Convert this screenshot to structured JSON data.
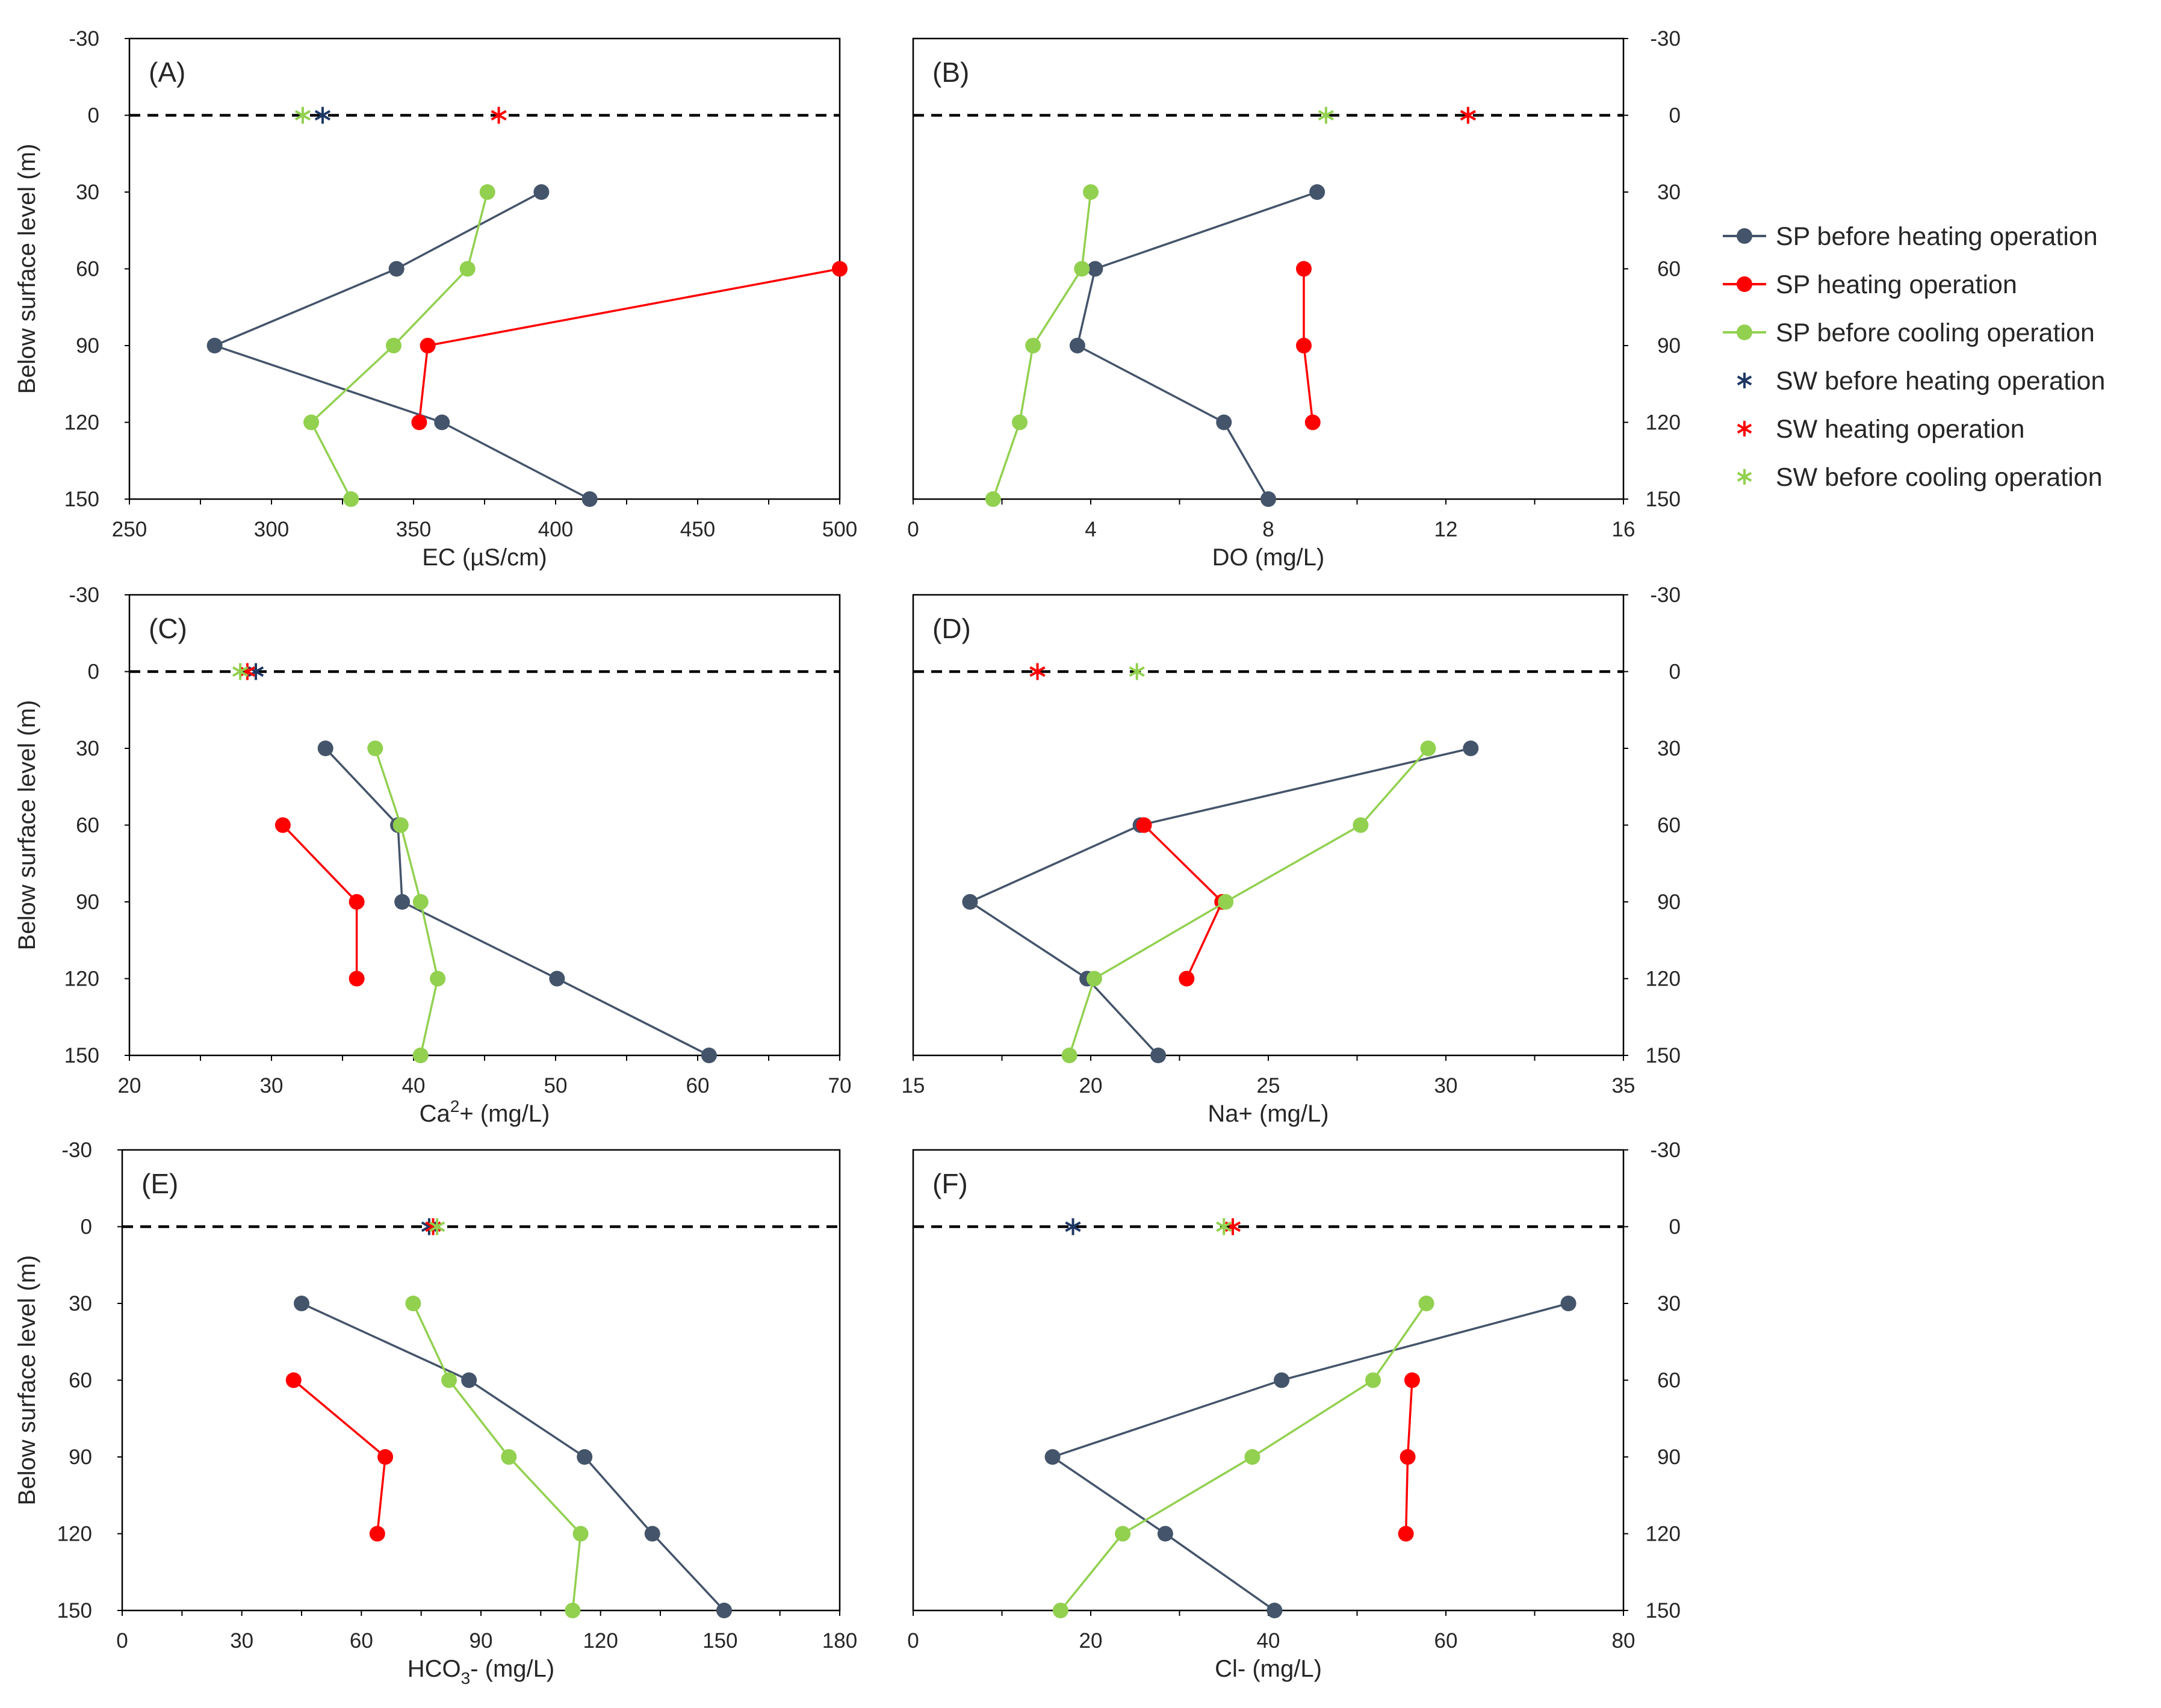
{
  "figure": {
    "ylabel": "Below surface level (m)",
    "yticks": [
      -30,
      0,
      30,
      60,
      90,
      120,
      150
    ],
    "depths": [
      30,
      60,
      90,
      120,
      150
    ],
    "colors": {
      "before_heating": "#44546A",
      "sw_before_heating": "#1F3864",
      "heating": "#FF0000",
      "before_cooling": "#92D050",
      "dashed_line": "#000000",
      "frame": "#000000"
    }
  },
  "legend": {
    "items": [
      {
        "label": "SP before heating operation",
        "type": "line",
        "color": "#44546A"
      },
      {
        "label": "SP heating operation",
        "type": "line",
        "color": "#FF0000"
      },
      {
        "label": "SP before cooling operation",
        "type": "line",
        "color": "#92D050"
      },
      {
        "label": "SW before heating operation",
        "type": "star",
        "color": "#1F3864"
      },
      {
        "label": "SW heating operation",
        "type": "star",
        "color": "#FF0000"
      },
      {
        "label": "SW before cooling operation",
        "type": "star",
        "color": "#92D050"
      }
    ]
  },
  "chart_data": [
    {
      "panel": "(A)",
      "type": "line",
      "xlabel": "EC (µS/cm)",
      "xlim": [
        250,
        500
      ],
      "xticks": [
        250,
        300,
        350,
        400,
        450,
        500
      ],
      "ylim": [
        -30,
        150
      ],
      "y_inverted": true,
      "series": [
        {
          "name": "SP before heating operation",
          "depths": [
            30,
            60,
            90,
            120,
            150
          ],
          "values": [
            395,
            344,
            280,
            360,
            412
          ]
        },
        {
          "name": "SP heating operation",
          "depths": [
            60,
            90,
            120
          ],
          "values": [
            500,
            355,
            352
          ]
        },
        {
          "name": "SP before cooling operation",
          "depths": [
            30,
            60,
            90,
            120,
            150
          ],
          "values": [
            376,
            369,
            343,
            314,
            328
          ]
        }
      ],
      "surface_water": [
        {
          "name": "SW before heating operation",
          "depth": 0,
          "value": 318
        },
        {
          "name": "SW heating operation",
          "depth": 0,
          "value": 380
        },
        {
          "name": "SW before cooling operation",
          "depth": 0,
          "value": 311
        }
      ]
    },
    {
      "panel": "(B)",
      "type": "line",
      "xlabel": "DO (mg/L)",
      "xlim": [
        0,
        16
      ],
      "xticks": [
        0,
        4,
        8,
        12,
        16
      ],
      "ylim": [
        -30,
        150
      ],
      "y_inverted": true,
      "series": [
        {
          "name": "SP before heating operation",
          "depths": [
            30,
            60,
            90,
            120,
            150
          ],
          "values": [
            9.1,
            4.1,
            3.7,
            7.0,
            8.0
          ]
        },
        {
          "name": "SP heating operation",
          "depths": [
            60,
            90,
            120
          ],
          "values": [
            8.8,
            8.8,
            9.0
          ]
        },
        {
          "name": "SP before cooling operation",
          "depths": [
            30,
            60,
            90,
            120,
            150
          ],
          "values": [
            4.0,
            3.8,
            2.7,
            2.4,
            1.8
          ]
        }
      ],
      "surface_water": [
        {
          "name": "SW before heating operation",
          "depth": 0,
          "value": 12.5
        },
        {
          "name": "SW heating operation",
          "depth": 0,
          "value": 12.5
        },
        {
          "name": "SW before cooling operation",
          "depth": 0,
          "value": 9.3
        }
      ]
    },
    {
      "panel": "(C)",
      "type": "line",
      "xlabel": "Ca",
      "xlabel_sup": "2",
      "xlabel_tail": "+ (mg/L)",
      "xlim": [
        20,
        70
      ],
      "xticks": [
        20,
        30,
        40,
        50,
        60,
        70
      ],
      "ylim": [
        -30,
        150
      ],
      "y_inverted": true,
      "series": [
        {
          "name": "SP before heating operation",
          "depths": [
            30,
            60,
            90,
            120,
            150
          ],
          "values": [
            33.8,
            38.9,
            39.2,
            50.1,
            60.8
          ]
        },
        {
          "name": "SP heating operation",
          "depths": [
            60,
            90,
            120
          ],
          "values": [
            30.8,
            36.0,
            36.0
          ]
        },
        {
          "name": "SP before cooling operation",
          "depths": [
            30,
            60,
            90,
            120,
            150
          ],
          "values": [
            37.3,
            39.1,
            40.5,
            41.7,
            40.5
          ]
        }
      ],
      "surface_water": [
        {
          "name": "SW before heating operation",
          "depth": 0,
          "value": 28.9
        },
        {
          "name": "SW heating operation",
          "depth": 0,
          "value": 28.3
        },
        {
          "name": "SW before cooling operation",
          "depth": 0,
          "value": 27.8
        }
      ]
    },
    {
      "panel": "(D)",
      "type": "line",
      "xlabel": "Na+ (mg/L)",
      "xlim": [
        15,
        35
      ],
      "xticks": [
        15,
        20,
        25,
        30,
        35
      ],
      "ylim": [
        -30,
        150
      ],
      "y_inverted": true,
      "series": [
        {
          "name": "SP before heating operation",
          "depths": [
            30,
            60,
            90,
            120,
            150
          ],
          "values": [
            30.7,
            21.4,
            16.6,
            19.9,
            21.9
          ]
        },
        {
          "name": "SP heating operation",
          "depths": [
            60,
            90,
            120
          ],
          "values": [
            21.5,
            23.7,
            22.7
          ]
        },
        {
          "name": "SP before cooling operation",
          "depths": [
            30,
            60,
            90,
            120,
            150
          ],
          "values": [
            29.5,
            27.6,
            23.8,
            20.1,
            19.4
          ]
        }
      ],
      "surface_water": [
        {
          "name": "SW before heating operation",
          "depth": 0,
          "value": 18.5
        },
        {
          "name": "SW heating operation",
          "depth": 0,
          "value": 18.5
        },
        {
          "name": "SW before cooling operation",
          "depth": 0,
          "value": 21.3
        }
      ]
    },
    {
      "panel": "(E)",
      "type": "line",
      "xlabel": "HCO",
      "xlabel_sub": "3",
      "xlabel_tail": "- (mg/L)",
      "xlim": [
        0,
        180
      ],
      "xticks": [
        0,
        30,
        60,
        90,
        120,
        150,
        180
      ],
      "ylim": [
        -30,
        150
      ],
      "y_inverted": true,
      "series": [
        {
          "name": "SP before heating operation",
          "depths": [
            30,
            60,
            90,
            120,
            150
          ],
          "values": [
            45,
            87,
            116,
            133,
            151
          ]
        },
        {
          "name": "SP heating operation",
          "depths": [
            60,
            90,
            120
          ],
          "values": [
            43,
            66,
            64
          ]
        },
        {
          "name": "SP before cooling operation",
          "depths": [
            30,
            60,
            90,
            120,
            150
          ],
          "values": [
            73,
            82,
            97,
            115,
            113
          ]
        }
      ],
      "surface_water": [
        {
          "name": "SW before heating operation",
          "depth": 0,
          "value": 77
        },
        {
          "name": "SW heating operation",
          "depth": 0,
          "value": 78
        },
        {
          "name": "SW before cooling operation",
          "depth": 0,
          "value": 79
        }
      ]
    },
    {
      "panel": "(F)",
      "type": "line",
      "xlabel": "Cl- (mg/L)",
      "xlim": [
        0,
        80
      ],
      "xticks": [
        0,
        20,
        40,
        60,
        80
      ],
      "ylim": [
        -30,
        150
      ],
      "y_inverted": true,
      "series": [
        {
          "name": "SP before heating operation",
          "depths": [
            30,
            60,
            90,
            120,
            150
          ],
          "values": [
            73.8,
            41.5,
            15.7,
            28.4,
            40.7
          ]
        },
        {
          "name": "SP heating operation",
          "depths": [
            60,
            90,
            120
          ],
          "values": [
            56.2,
            55.7,
            55.5
          ]
        },
        {
          "name": "SP before cooling operation",
          "depths": [
            30,
            60,
            90,
            120,
            150
          ],
          "values": [
            57.8,
            51.8,
            38.2,
            23.6,
            16.6
          ]
        }
      ],
      "surface_water": [
        {
          "name": "SW before heating operation",
          "depth": 0,
          "value": 18.0
        },
        {
          "name": "SW heating operation",
          "depth": 0,
          "value": 36.0
        },
        {
          "name": "SW before cooling operation",
          "depth": 0,
          "value": 35.0
        }
      ]
    }
  ]
}
